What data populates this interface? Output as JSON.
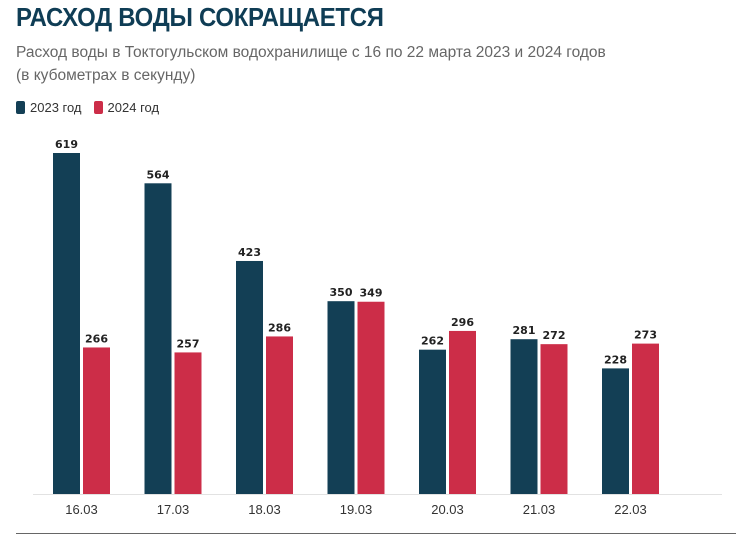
{
  "header": {
    "title": "РАСХОД ВОДЫ СОКРАЩАЕТСЯ",
    "subtitle_line1": "Расход воды в Токтогульском водохранилище с 16 по 22 марта 2023 и 2024 годов",
    "subtitle_line2": "(в кубометрах в секунду)"
  },
  "legend": [
    {
      "label": "2023 год",
      "color": "#133f55"
    },
    {
      "label": "2024 год",
      "color": "#cc2d48"
    }
  ],
  "chart_data": {
    "type": "bar",
    "title": "РАСХОД ВОДЫ СОКРАЩАЕТСЯ",
    "subtitle": "Расход воды в Токтогульском водохранилище с 16 по 22 марта 2023 и 2024 годов (в кубометрах в секунду)",
    "xlabel": "",
    "ylabel": "",
    "categories": [
      "16.03",
      "17.03",
      "18.03",
      "19.03",
      "20.03",
      "21.03",
      "22.03"
    ],
    "series": [
      {
        "name": "2023 год",
        "color": "#133f55",
        "values": [
          619,
          564,
          423,
          350,
          262,
          281,
          228
        ]
      },
      {
        "name": "2024 год",
        "color": "#cc2d48",
        "values": [
          266,
          257,
          286,
          349,
          296,
          272,
          273
        ]
      }
    ],
    "ylim": [
      0,
      619
    ],
    "grid": false,
    "legend_position": "top-left"
  }
}
